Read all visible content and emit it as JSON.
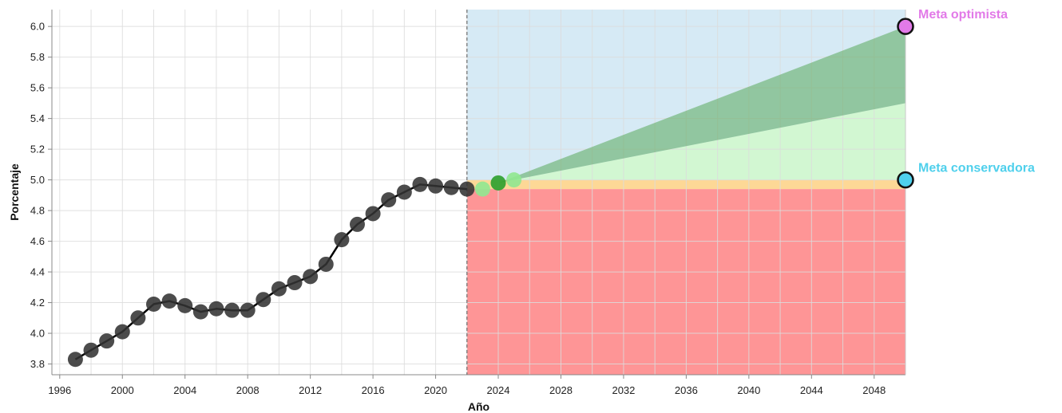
{
  "chart_data": {
    "type": "line",
    "xlabel": "Año",
    "ylabel": "Porcentaje",
    "xlim": [
      1995.5,
      2050
    ],
    "ylim": [
      3.73,
      6.11
    ],
    "x_ticks": [
      1996,
      2000,
      2004,
      2008,
      2012,
      2016,
      2020,
      2024,
      2028,
      2032,
      2036,
      2040,
      2044,
      2048
    ],
    "y_ticks": [
      3.8,
      4.0,
      4.2,
      4.4,
      4.6,
      4.8,
      5.0,
      5.2,
      5.4,
      5.6,
      5.8,
      6.0
    ],
    "y_tick_labels": [
      "3.8",
      "4.0",
      "4.2",
      "4.4",
      "4.6",
      "4.8",
      "5.0",
      "5.2",
      "5.4",
      "5.6",
      "5.8",
      "6.0"
    ],
    "grid": true,
    "divider_year": 2022,
    "series": [
      {
        "color": "#000000",
        "x": [
          1997,
          1998,
          1999,
          2000,
          2001,
          2002,
          2003,
          2004,
          2005,
          2006,
          2007,
          2008,
          2009,
          2010,
          2011,
          2012,
          2013,
          2014,
          2015,
          2016,
          2017,
          2018,
          2019,
          2020,
          2021,
          2022
        ],
        "values": [
          3.83,
          3.89,
          3.95,
          4.01,
          4.1,
          4.19,
          4.21,
          4.18,
          4.14,
          4.16,
          4.15,
          4.15,
          4.22,
          4.29,
          4.33,
          4.37,
          4.45,
          4.61,
          4.71,
          4.78,
          4.87,
          4.92,
          4.97,
          4.96,
          4.95,
          4.94
        ]
      }
    ],
    "projection_points": [
      {
        "x": 2023,
        "y": 4.94,
        "color": "#90e890"
      },
      {
        "x": 2024,
        "y": 4.98,
        "color": "#2ca02c"
      },
      {
        "x": 2025,
        "y": 5.0,
        "color": "#90e890"
      }
    ],
    "regions": [
      {
        "key": "above_optimistic",
        "color": "#d6eaf5",
        "opacity": 1.0
      },
      {
        "key": "above_conservative",
        "color": "#d2f7d2",
        "opacity": 1.0
      },
      {
        "key": "near_conservative",
        "color": "#fdd896",
        "opacity": 1.0
      },
      {
        "key": "below",
        "color": "#fe9596",
        "opacity": 1.0
      },
      {
        "key": "projection_band",
        "color": "#5aa85a",
        "opacity": 0.55
      }
    ],
    "band_upper": {
      "x": [
        2024,
        2050
      ],
      "y": [
        4.98,
        6.0
      ]
    },
    "band_lower": {
      "x": [
        2024,
        2050
      ],
      "y": [
        4.98,
        5.5
      ]
    },
    "near_band": {
      "upper": 5.0,
      "lower": 4.94
    },
    "goals": [
      {
        "label": "Meta optimista",
        "x": 2050,
        "y": 6.0,
        "color": "#e27ae8"
      },
      {
        "label": "Meta conservadora",
        "x": 2050,
        "y": 5.0,
        "color": "#4fd0ec"
      }
    ]
  }
}
